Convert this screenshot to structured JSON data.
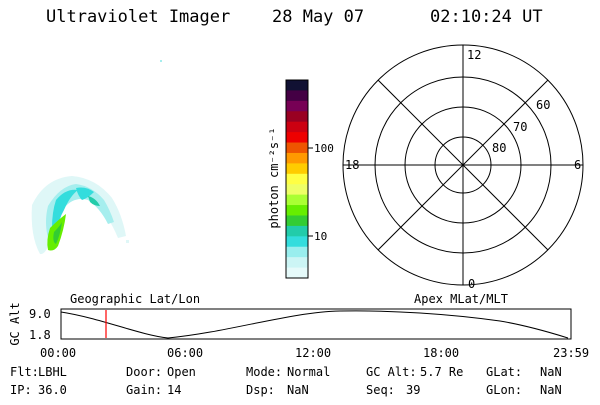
{
  "header": {
    "instrument": "Ultraviolet Imager",
    "date": "28 May 07",
    "time": "02:10:24 UT"
  },
  "colorbar": {
    "label": "photon cm⁻²s⁻¹",
    "ticks": [
      "100",
      "10"
    ],
    "colors": [
      "#111133",
      "#440044",
      "#770055",
      "#990022",
      "#cc0011",
      "#ee0000",
      "#ee5500",
      "#ff9900",
      "#ffcc00",
      "#ffff44",
      "#eeff66",
      "#aaff33",
      "#66ee00",
      "#33cc33",
      "#22ccaa",
      "#33dddd",
      "#99eeee",
      "#ccf5f5",
      "#e6fafa"
    ]
  },
  "polar": {
    "mlt_labels": {
      "top": "12",
      "right": "6",
      "bottom": "0",
      "left": "18"
    },
    "lat_labels": [
      "60",
      "70",
      "80"
    ]
  },
  "timeline": {
    "left_title": "Geographic Lat/Lon",
    "right_title": "Apex MLat/MLT",
    "axis_label": "GC Alt",
    "y_values": [
      "9.0",
      "1.8"
    ],
    "x_ticks": [
      "00:00",
      "06:00",
      "12:00",
      "18:00",
      "23:59"
    ],
    "marker_color": "#ff0000"
  },
  "status": {
    "flt_label": "Flt:",
    "flt_value": "LBHL",
    "door_label": "Door:",
    "door_value": "Open",
    "mode_label": "Mode:",
    "mode_value": "Normal",
    "gcalt_label": "GC Alt:",
    "gcalt_value": "5.7 Re",
    "glat_label": "GLat:",
    "glat_value": "NaN",
    "ip_label": "IP:",
    "ip_value": "36.0",
    "gain_label": "Gain:",
    "gain_value": "14",
    "dsp_label": "Dsp:",
    "dsp_value": "NaN",
    "seq_label": "Seq:",
    "seq_value": "39",
    "glon_label": "GLon:",
    "glon_value": "NaN"
  }
}
